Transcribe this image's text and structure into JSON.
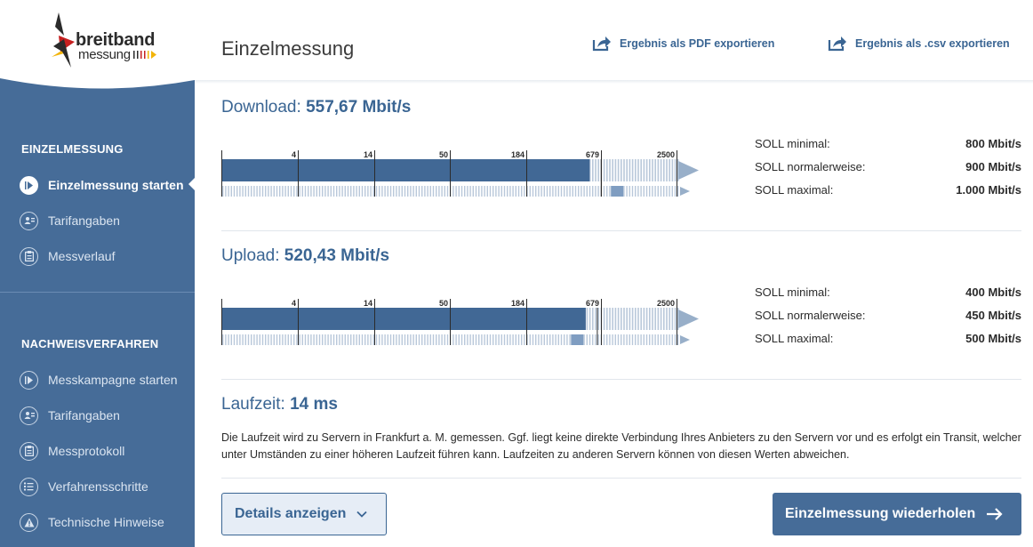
{
  "brand": {
    "name": "breitband",
    "sub": "messung"
  },
  "sidebar": {
    "section1": {
      "heading": "EINZELMESSUNG",
      "items": [
        {
          "label": "Einzelmessung starten",
          "icon": "play-circle-icon",
          "active": true
        },
        {
          "label": "Tarifangaben",
          "icon": "user-card-icon"
        },
        {
          "label": "Messverlauf",
          "icon": "clipboard-icon"
        }
      ]
    },
    "section2": {
      "heading": "NACHWEISVERFAHREN",
      "items": [
        {
          "label": "Messkampagne starten",
          "icon": "play-circle-icon"
        },
        {
          "label": "Tarifangaben",
          "icon": "user-card-icon"
        },
        {
          "label": "Messprotokoll",
          "icon": "clipboard-icon"
        },
        {
          "label": "Verfahrensschritte",
          "icon": "list-icon"
        },
        {
          "label": "Technische Hinweise",
          "icon": "warning-icon"
        }
      ]
    }
  },
  "header": {
    "title": "Einzelmessung",
    "export_pdf": "Ergebnis als PDF exportieren",
    "export_csv": "Ergebnis als .csv exportieren"
  },
  "scale_ticks": [
    "4",
    "14",
    "50",
    "184",
    "679",
    "2500"
  ],
  "download": {
    "label": "Download:",
    "value": "557,67 Mbit/s",
    "measured_mbits": 557.67,
    "secondary_mbits": 1000,
    "soll": [
      {
        "label": "SOLL minimal:",
        "value": "800 Mbit/s"
      },
      {
        "label": "SOLL normalerweise:",
        "value": "900 Mbit/s"
      },
      {
        "label": "SOLL maximal:",
        "value": "1.000 Mbit/s"
      }
    ]
  },
  "upload": {
    "label": "Upload:",
    "value": "520,43 Mbit/s",
    "measured_mbits": 520.43,
    "secondary_mbits": 500,
    "soll": [
      {
        "label": "SOLL minimal:",
        "value": "400 Mbit/s"
      },
      {
        "label": "SOLL normalerweise:",
        "value": "450 Mbit/s"
      },
      {
        "label": "SOLL maximal:",
        "value": "500 Mbit/s"
      }
    ]
  },
  "latency": {
    "label": "Laufzeit:",
    "value": "14 ms",
    "description": "Die Laufzeit wird zu Servern in Frankfurt a. M. gemessen. Ggf. liegt keine direkte Verbindung Ihres Anbieters zu den Servern vor und es erfolgt ein Transit, welcher unter Umständen zu einer höheren Laufzeit führen kann. Laufzeiten zu anderen Servern können von diesen Werten abweichen."
  },
  "buttons": {
    "details": "Details anzeigen",
    "repeat": "Einzelmessung wiederholen"
  },
  "colors": {
    "sidebar": "#466c98",
    "accent": "#3a6593",
    "bar": "#416895",
    "bar_light": "#b9c8da"
  }
}
